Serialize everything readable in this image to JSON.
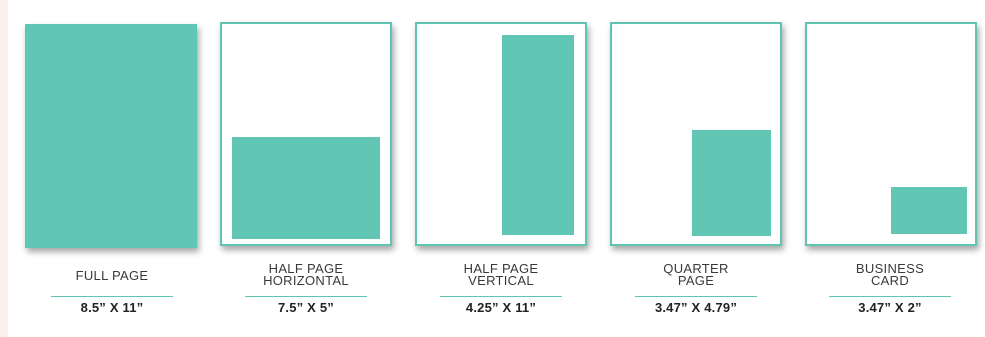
{
  "colors": {
    "accent": "#61c6b4",
    "border": "#5fc4b2",
    "label_text": "#3a3a3a",
    "size_text": "#222222"
  },
  "ad_sizes": [
    {
      "label_lines": [
        "FULL PAGE"
      ],
      "size": "8.5” X 11”"
    },
    {
      "label_lines": [
        "HALF PAGE",
        "HORIZONTAL"
      ],
      "size": "7.5” X 5”"
    },
    {
      "label_lines": [
        "HALF PAGE",
        "VERTICAL"
      ],
      "size": "4.25” X 11”"
    },
    {
      "label_lines": [
        "QUARTER",
        "PAGE"
      ],
      "size": "3.47” X 4.79”"
    },
    {
      "label_lines": [
        "BUSINESS",
        "CARD"
      ],
      "size": "3.47” X 2”"
    }
  ]
}
